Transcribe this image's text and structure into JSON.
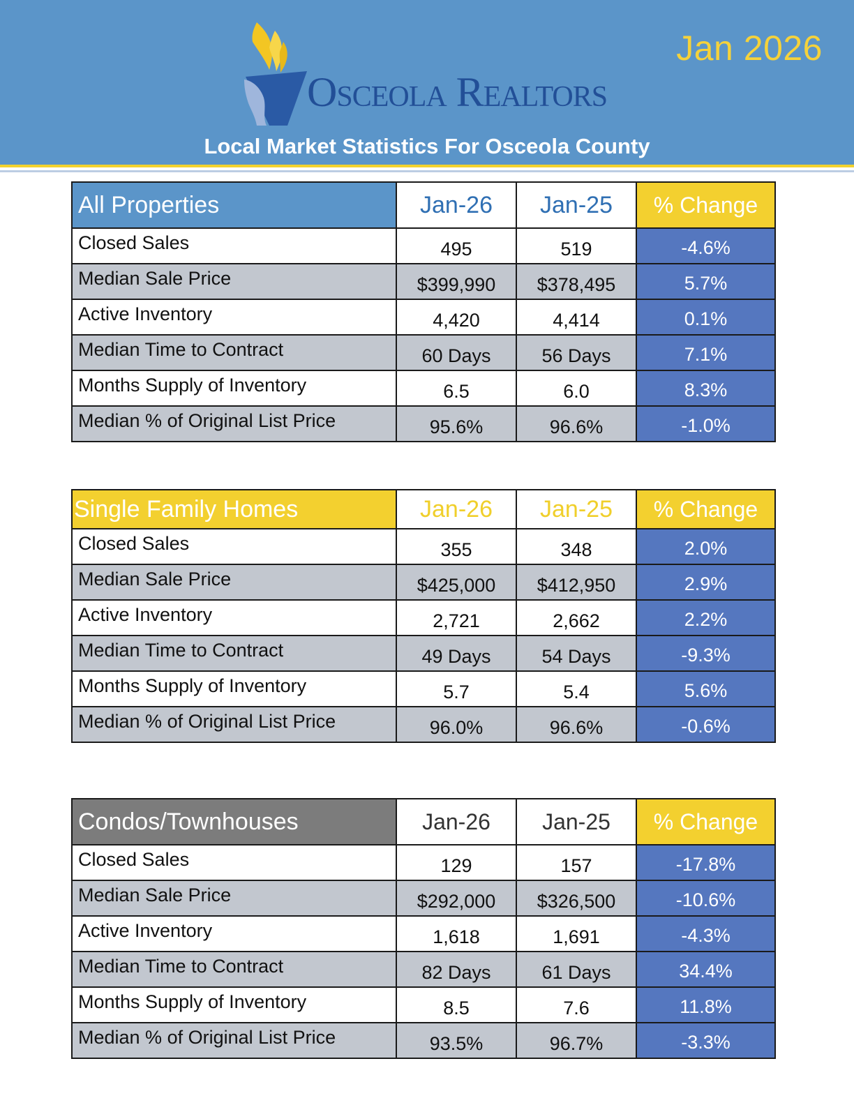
{
  "header": {
    "month": "Jan 2026",
    "brand": "Osceola Realtors",
    "subtitle": "Local Market Statistics For Osceola County"
  },
  "colors": {
    "header_blue": "#5b95c9",
    "accent_yellow": "#f3d02f",
    "change_blue": "#5577bf",
    "shade_gray": "#c2c7cf"
  },
  "tables": [
    {
      "title": "All Properties",
      "col1": "Jan-26",
      "col2": "Jan-25",
      "col3": "% Change",
      "rows": [
        {
          "label": "Closed Sales",
          "current": "495",
          "previous": "519",
          "change": "-4.6%"
        },
        {
          "label": "Median Sale Price",
          "current": "$399,990",
          "previous": "$378,495",
          "change": "5.7%"
        },
        {
          "label": "Active Inventory",
          "current": "4,420",
          "previous": "4,414",
          "change": "0.1%"
        },
        {
          "label": "Median Time to Contract",
          "current": "60 Days",
          "previous": "56 Days",
          "change": "7.1%"
        },
        {
          "label": "Months Supply of Inventory",
          "current": "6.5",
          "previous": "6.0",
          "change": "8.3%"
        },
        {
          "label": "Median % of Original List Price",
          "current": "95.6%",
          "previous": "96.6%",
          "change": "-1.0%"
        }
      ]
    },
    {
      "title": "Single Family Homes",
      "col1": "Jan-26",
      "col2": "Jan-25",
      "col3": "% Change",
      "rows": [
        {
          "label": "Closed Sales",
          "current": "355",
          "previous": "348",
          "change": "2.0%"
        },
        {
          "label": "Median Sale Price",
          "current": "$425,000",
          "previous": "$412,950",
          "change": "2.9%"
        },
        {
          "label": "Active Inventory",
          "current": "2,721",
          "previous": "2,662",
          "change": "2.2%"
        },
        {
          "label": "Median Time to Contract",
          "current": "49 Days",
          "previous": "54 Days",
          "change": "-9.3%"
        },
        {
          "label": "Months Supply of Inventory",
          "current": "5.7",
          "previous": "5.4",
          "change": "5.6%"
        },
        {
          "label": "Median % of Original List Price",
          "current": "96.0%",
          "previous": "96.6%",
          "change": "-0.6%"
        }
      ]
    },
    {
      "title": "Condos/Townhouses",
      "col1": "Jan-26",
      "col2": "Jan-25",
      "col3": "% Change",
      "rows": [
        {
          "label": "Closed Sales",
          "current": "129",
          "previous": "157",
          "change": "-17.8%"
        },
        {
          "label": "Median Sale Price",
          "current": "$292,000",
          "previous": "$326,500",
          "change": "-10.6%"
        },
        {
          "label": "Active Inventory",
          "current": "1,618",
          "previous": "1,691",
          "change": "-4.3%"
        },
        {
          "label": "Median Time to Contract",
          "current": "82 Days",
          "previous": "61 Days",
          "change": "34.4%"
        },
        {
          "label": "Months Supply of Inventory",
          "current": "8.5",
          "previous": "7.6",
          "change": "11.8%"
        },
        {
          "label": "Median % of Original List Price",
          "current": "93.5%",
          "previous": "96.7%",
          "change": "-3.3%"
        }
      ]
    }
  ]
}
